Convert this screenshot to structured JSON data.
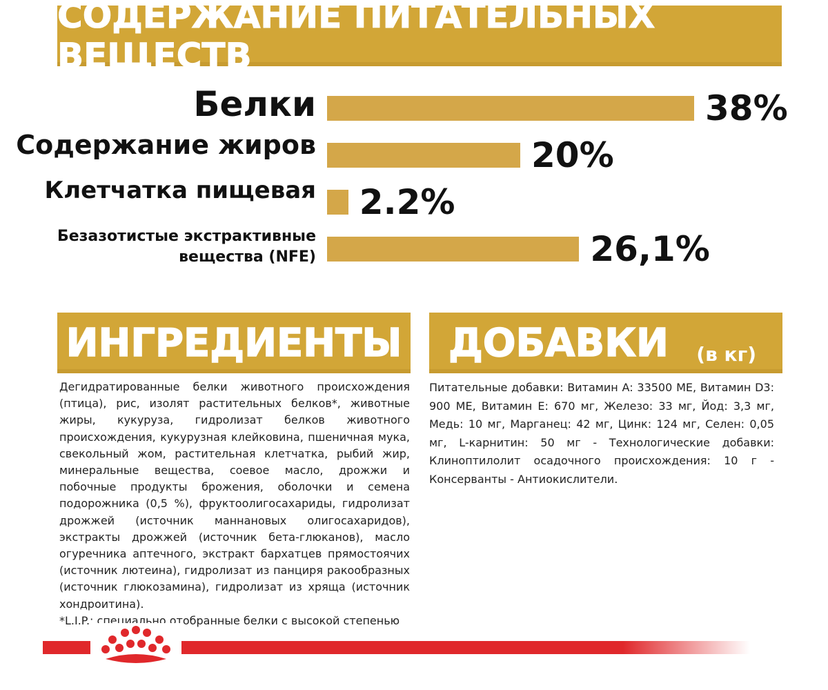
{
  "nutrients": {
    "title": "СОДЕРЖАНИЕ ПИТАТЕЛЬНЫХ ВЕЩЕСТВ",
    "rows": [
      {
        "label": "Белки",
        "value_text": "38%",
        "value": 38
      },
      {
        "label": "Содержание жиров",
        "value_text": "20%",
        "value": 20
      },
      {
        "label": "Клетчатка пищевая",
        "value_text": "2.2%",
        "value": 2.2
      },
      {
        "label_line1": "Безазотистые экстрактивные",
        "label_line2": "вещества (NFE)",
        "value_text": "26,1%",
        "value": 26.1
      }
    ]
  },
  "ingredients": {
    "title": "ИНГРЕДИЕНТЫ",
    "text": "Дегидратированные белки животного происхождения (птица), рис, изолят растительных белков*, животные жиры, кукуруза, гидролизат белков животного происхождения, кукурузная клейковина, пшеничная мука, свекольный жом, растительная клетчатка, рыбий жир, минеральные вещества, соевое масло, дрожжи и побочные продукты брожения, оболочки и семена подорожника (0,5 %), фруктоолигосахариды, гидролизат дрожжей (источник маннановых олигосахаридов), экстракты дрожжей (источник бета-глюканов), масло огуречника аптечного, экстракт бархатцев прямостоячих (источник лютеина), гидролизат из панциря ракообразных (источник глюкозамина), гидролизат из хряща (источник хондроитина).",
    "footnote": "*L.I.P.: специально отобранные белки с высокой степенью"
  },
  "additives": {
    "title": "ДОБАВКИ",
    "unit": "(в кг)",
    "text": "Питательные добавки: Витамин A: 33500 МЕ, Витамин D3: 900 МЕ, Витамин E: 670 мг, Железо: 33 мг, Йод: 3,3 мг, Медь: 10 мг, Марганец: 42 мг, Цинк: 124 мг, Селен: 0,05 мг, L-карнитин: 50 мг - Технологические добавки: Клиноптилолит осадочного происхождения: 10 г - Консерванты - Антиокислители."
  },
  "colors": {
    "gold": "#d2a637",
    "bar": "#d4a749",
    "red": "#e0282b"
  },
  "logo": {
    "icon": "royal-canin-crown-icon"
  }
}
